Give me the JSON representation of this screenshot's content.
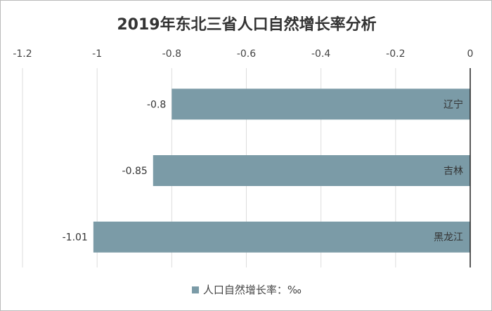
{
  "chart_data": {
    "type": "bar",
    "orientation": "horizontal",
    "title": "2019年东北三省人口自然增长率分析",
    "categories": [
      "辽宁",
      "吉林",
      "黑龙江"
    ],
    "series": [
      {
        "name": "人口自然增长率：‰",
        "values": [
          -0.8,
          -0.85,
          -1.01
        ],
        "color": "#7b9ba7"
      }
    ],
    "data_labels": [
      "-0.8",
      "-0.85",
      "-1.01"
    ],
    "xlim": [
      -1.2,
      0
    ],
    "xticks": [
      -1.2,
      -1,
      -0.8,
      -0.6,
      -0.4,
      -0.2,
      0
    ],
    "xtick_labels": [
      "-1.2",
      "-1",
      "-0.8",
      "-0.6",
      "-0.4",
      "-0.2",
      "0"
    ],
    "x_axis_position": "top",
    "grid": true,
    "legend": "bottom"
  }
}
